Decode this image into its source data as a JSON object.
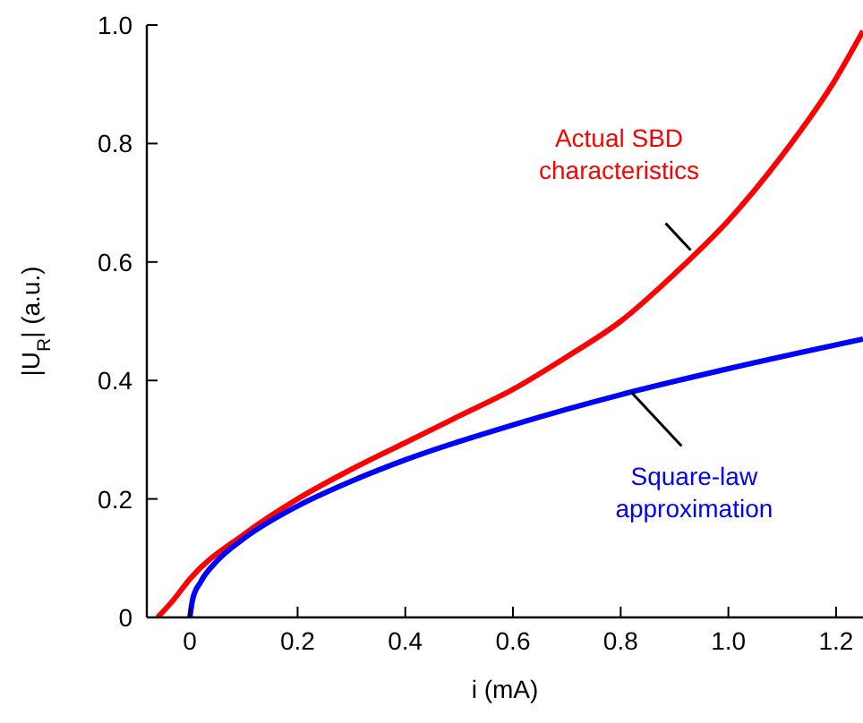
{
  "chart_data": {
    "type": "line",
    "xlabel": "i (mA)",
    "ylabel": "|U$_{R}$| (a.u.)",
    "xlim": [
      -0.08,
      1.25
    ],
    "ylim": [
      0,
      1
    ],
    "xticks": [
      0,
      0.2,
      0.4,
      0.6,
      0.8,
      {
        "value": 1,
        "label": "1.0"
      },
      1.2
    ],
    "yticks": [
      0,
      0.2,
      0.4,
      0.6,
      0.8,
      {
        "value": 1,
        "label": "1.0"
      }
    ],
    "grid": false,
    "marker": "none",
    "line_style": "solid",
    "series": [
      {
        "color": "#ff0000",
        "x": [
          -0.06,
          -0.03,
          0,
          0.1,
          0.2,
          0.3,
          0.4,
          0.5,
          0.6,
          0.7,
          0.8,
          0.9,
          1.0,
          1.1,
          1.2,
          1.25
        ],
        "values": [
          0,
          0.03,
          0.065,
          0.14,
          0.2,
          0.25,
          0.295,
          0.34,
          0.385,
          0.44,
          0.5,
          0.58,
          0.67,
          0.78,
          0.91,
          0.99
        ]
      },
      {
        "color": "#0000ff",
        "x": [
          0,
          0.005,
          0.02,
          0.05,
          0.1,
          0.2,
          0.3,
          0.4,
          0.6,
          0.8,
          1.0,
          1.25
        ],
        "values": [
          0,
          0.03,
          0.06,
          0.095,
          0.133,
          0.188,
          0.23,
          0.266,
          0.325,
          0.376,
          0.42,
          0.47
        ]
      }
    ],
    "annotations": [
      {
        "text": "Actual SBD\ncharacteristics",
        "x": 0.93,
        "y": 0.62
      },
      {
        "text": "Square-law\napproximation",
        "x": 0.82,
        "y": 0.38
      }
    ]
  }
}
